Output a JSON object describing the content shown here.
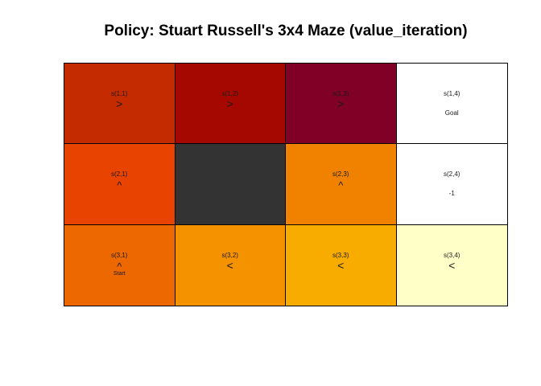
{
  "title": "Policy: Stuart Russell's 3x4 Maze (value_iteration)",
  "maze": {
    "rows": 3,
    "cols": 4,
    "cells": [
      {
        "label": "s(1,1)",
        "action": ">",
        "note": "",
        "color": "#c42b00"
      },
      {
        "label": "s(1,2)",
        "action": ">",
        "note": "",
        "color": "#a50800"
      },
      {
        "label": "s(1,3)",
        "action": ">",
        "note": "",
        "color": "#800026"
      },
      {
        "label": "s(1,4)",
        "action": "",
        "note": "Goal",
        "color": "#ffffff"
      },
      {
        "label": "s(2,1)",
        "action": "^",
        "note": "",
        "color": "#e84300"
      },
      {
        "label": "",
        "action": "",
        "note": "",
        "color": "#333333"
      },
      {
        "label": "s(2,3)",
        "action": "^",
        "note": "",
        "color": "#f08200"
      },
      {
        "label": "s(2,4)",
        "action": "",
        "note": "-1",
        "color": "#ffffff"
      },
      {
        "label": "s(3,1)",
        "action": "^",
        "note": "Start",
        "color": "#ee6800"
      },
      {
        "label": "s(3,2)",
        "action": "<",
        "note": "",
        "color": "#f59200"
      },
      {
        "label": "s(3,3)",
        "action": "<",
        "note": "",
        "color": "#f8ac00"
      },
      {
        "label": "s(3,4)",
        "action": "<",
        "note": "",
        "color": "#ffffc8"
      }
    ]
  }
}
